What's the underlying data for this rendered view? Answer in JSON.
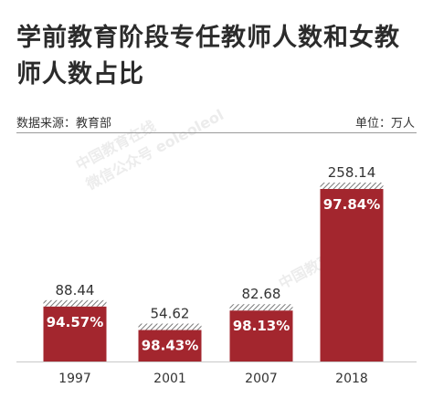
{
  "title": "学前教育阶段专任教师人数和女教师人数占比",
  "source": "数据来源：教育部",
  "unit": "单位：万人",
  "watermark": {
    "line1": "中国教育在线",
    "line2": "微信公众号 eoleoleol"
  },
  "colors": {
    "bar": "#a3262e",
    "hatch": "#7a7a7a",
    "text": "#333333",
    "label": "#ffffff"
  },
  "chart_data": {
    "type": "bar",
    "title": "学前教育阶段专任教师人数和女教师人数占比",
    "categories": [
      "1997",
      "2001",
      "2007",
      "2018"
    ],
    "series": [
      {
        "values": [
          88.44,
          54.62,
          82.68,
          258.14
        ]
      },
      {
        "values": [
          94.57,
          98.43,
          98.13,
          97.84
        ]
      }
    ],
    "value_labels": [
      "88.44",
      "54.62",
      "82.68",
      "258.14"
    ],
    "percent_labels": [
      "94.57%",
      "98.43%",
      "98.13%",
      "97.84%"
    ],
    "ylim": [
      0,
      270
    ],
    "grid": false,
    "legend": "none"
  }
}
